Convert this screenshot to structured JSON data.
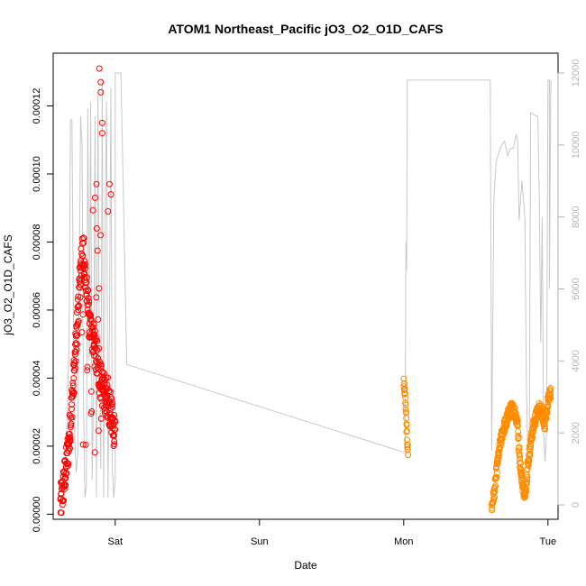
{
  "chart_data": {
    "type": "scatter",
    "title": "ATOM1 Northeast_Pacific jO3_O2_O1D_CAFS",
    "xlabel": "Date",
    "ylabel": "jO3_O2_O1D_CAFS",
    "x_ticks": [
      "Sat",
      "Sun",
      "Mon",
      "Tue"
    ],
    "x_tick_positions_days": [
      1,
      2,
      3,
      4
    ],
    "xlim_days": [
      0.57,
      4.07
    ],
    "ylim": [
      -1.5e-06,
      0.0001355
    ],
    "y_ticks": [
      0,
      2e-05,
      4e-05,
      6e-05,
      8e-05,
      0.0001,
      0.00012
    ],
    "y_tick_labels": [
      "0.00000",
      "0.00002",
      "0.00004",
      "0.00006",
      "0.00008",
      "0.00010",
      "0.00012"
    ],
    "right_axis": {
      "ylim": [
        -400,
        12550
      ],
      "ticks": [
        0,
        2000,
        4000,
        6000,
        8000,
        10000,
        12000
      ],
      "tick_labels": [
        "0",
        "2000",
        "4000",
        "6000",
        "8000",
        "10000",
        "12000"
      ],
      "color": "#b4b4b4",
      "series": {
        "name": "",
        "color": "#c8c8c8",
        "points": [
          [
            0.62,
            700
          ],
          [
            0.64,
            1000
          ],
          [
            0.66,
            1500
          ],
          [
            0.68,
            4500
          ],
          [
            0.69,
            10700
          ],
          [
            0.7,
            10700
          ],
          [
            0.71,
            5500
          ],
          [
            0.72,
            1800
          ],
          [
            0.73,
            900
          ],
          [
            0.74,
            1400
          ],
          [
            0.75,
            6000
          ],
          [
            0.76,
            10800
          ],
          [
            0.77,
            10000
          ],
          [
            0.78,
            3000
          ],
          [
            0.79,
            200
          ],
          [
            0.8,
            500
          ],
          [
            0.81,
            11000
          ],
          [
            0.82,
            4000
          ],
          [
            0.83,
            11200
          ],
          [
            0.84,
            700
          ],
          [
            0.85,
            3000
          ],
          [
            0.86,
            10800
          ],
          [
            0.87,
            200
          ],
          [
            0.88,
            11400
          ],
          [
            0.89,
            4000
          ],
          [
            0.9,
            1000
          ],
          [
            0.91,
            11800
          ],
          [
            0.92,
            200
          ],
          [
            0.93,
            8000
          ],
          [
            0.94,
            11200
          ],
          [
            0.95,
            200
          ],
          [
            0.96,
            5000
          ],
          [
            0.97,
            11600
          ],
          [
            0.98,
            1000
          ],
          [
            0.99,
            200
          ],
          [
            1.0,
            700
          ],
          [
            1.0,
            12000
          ],
          [
            1.02,
            12000
          ],
          [
            1.04,
            12000
          ],
          [
            1.04,
            11900
          ],
          [
            1.08,
            3900
          ],
          [
            3.01,
            1450
          ],
          [
            3.015,
            7300
          ],
          [
            3.02,
            6500
          ],
          [
            3.025,
            11800
          ],
          [
            3.2,
            11800
          ],
          [
            3.5,
            11800
          ],
          [
            3.6,
            11800
          ],
          [
            3.61,
            1500
          ],
          [
            3.625,
            8500
          ],
          [
            3.64,
            9500
          ],
          [
            3.66,
            9800
          ],
          [
            3.68,
            10000
          ],
          [
            3.7,
            10100
          ],
          [
            3.72,
            9700
          ],
          [
            3.74,
            9900
          ],
          [
            3.76,
            9900
          ],
          [
            3.78,
            10300
          ],
          [
            3.79,
            10100
          ],
          [
            3.8,
            7900
          ],
          [
            3.82,
            9000
          ],
          [
            3.84,
            8000
          ],
          [
            3.85,
            3500
          ],
          [
            3.86,
            1500
          ],
          [
            3.87,
            700
          ],
          [
            3.88,
            10900
          ],
          [
            3.92,
            10800
          ],
          [
            3.93,
            10800
          ],
          [
            3.94,
            8500
          ],
          [
            3.95,
            4500
          ],
          [
            3.96,
            8000
          ],
          [
            3.97,
            2000
          ],
          [
            3.98,
            1200
          ],
          [
            3.99,
            2000
          ],
          [
            4.0,
            11800
          ],
          [
            4.01,
            11800
          ],
          [
            4.01,
            6000
          ],
          [
            4.02,
            11800
          ]
        ]
      }
    },
    "series": [
      {
        "name": "",
        "color": "#ff0000",
        "marker": "open-circle",
        "segments": [
          {
            "x_start": 0.62,
            "x_end": 1.0,
            "profile": [
              [
                0.62,
                2.5e-06
              ],
              [
                0.64,
                8e-06
              ],
              [
                0.66,
                1.4e-05
              ],
              [
                0.68,
                2.2e-05
              ],
              [
                0.7,
                3.3e-05
              ],
              [
                0.72,
                4.4e-05
              ],
              [
                0.74,
                5.8e-05
              ],
              [
                0.76,
                7.2e-05
              ],
              [
                0.78,
                7.8e-05
              ],
              [
                0.8,
                6.6e-05
              ],
              [
                0.82,
                5.6e-05
              ],
              [
                0.84,
                5.3e-05
              ],
              [
                0.86,
                4.8e-05
              ],
              [
                0.88,
                4.4e-05
              ],
              [
                0.9,
                3.9e-05
              ],
              [
                0.92,
                3.6e-05
              ],
              [
                0.94,
                3.5e-05
              ],
              [
                0.96,
                3.2e-05
              ],
              [
                0.98,
                2.8e-05
              ],
              [
                1.0,
                2.3e-05
              ]
            ]
          }
        ],
        "outliers_max": 0.000131
      },
      {
        "name": "",
        "color": "#ff8c00",
        "marker": "open-circle",
        "segments": [
          {
            "x_start": 3.0,
            "x_end": 3.03,
            "profile": [
              [
                3.0,
                3.9e-05
              ],
              [
                3.01,
                3.5e-05
              ],
              [
                3.02,
                2.5e-05
              ],
              [
                3.03,
                1.8e-05
              ]
            ]
          },
          {
            "x_start": 3.61,
            "x_end": 4.02,
            "profile": [
              [
                3.61,
                2e-06
              ],
              [
                3.63,
                7e-06
              ],
              [
                3.65,
                1.5e-05
              ],
              [
                3.67,
                2.1e-05
              ],
              [
                3.69,
                2.5e-05
              ],
              [
                3.71,
                2.7e-05
              ],
              [
                3.73,
                3e-05
              ],
              [
                3.75,
                3.1e-05
              ],
              [
                3.77,
                3e-05
              ],
              [
                3.79,
                2.7e-05
              ],
              [
                3.8,
                1.8e-05
              ],
              [
                3.82,
                1e-05
              ],
              [
                3.84,
                5e-06
              ],
              [
                3.86,
                1.4e-05
              ],
              [
                3.88,
                2.1e-05
              ],
              [
                3.9,
                2.6e-05
              ],
              [
                3.92,
                2.9e-05
              ],
              [
                3.94,
                3.1e-05
              ],
              [
                3.96,
                3e-05
              ],
              [
                3.98,
                2.6e-05
              ],
              [
                4.0,
                3.3e-05
              ],
              [
                4.02,
                3.6e-05
              ]
            ]
          }
        ]
      }
    ]
  }
}
